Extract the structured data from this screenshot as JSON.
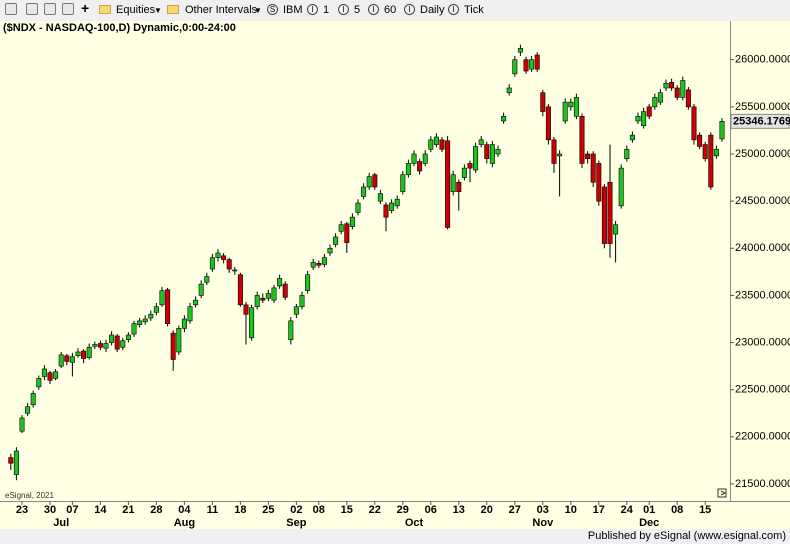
{
  "toolbar": [
    "Equities",
    "Other Intervals",
    "IBM",
    "1",
    "5",
    "60",
    "Daily",
    "Tick"
  ],
  "chart_data": {
    "type": "candlestick",
    "title": "($NDX - NASDAQ-100,D) Dynamic,0:00-24:00",
    "watermark": "eSignal, 2021",
    "footer": "Published by eSignal (www.esignal.com)",
    "up_color": "#1fc31f",
    "down_color": "#c80000",
    "background": "#ffffe3",
    "grid": false,
    "ylim": [
      21330,
      26400
    ],
    "yticks": [
      {
        "value": 21500,
        "label": "21500.0000"
      },
      {
        "value": 22000,
        "label": "22000.0000"
      },
      {
        "value": 22500,
        "label": "22500.0000"
      },
      {
        "value": 23000,
        "label": "23000.0000"
      },
      {
        "value": 23500,
        "label": "23500.0000"
      },
      {
        "value": 24000,
        "label": "24000.0000"
      },
      {
        "value": 24500,
        "label": "24500.0000"
      },
      {
        "value": 25000,
        "label": "25000.0000"
      },
      {
        "value": 25500,
        "label": "25500.0000"
      },
      {
        "value": 26000,
        "label": "26000.0000"
      }
    ],
    "categories": [
      null,
      null,
      "23",
      null,
      null,
      null,
      null,
      "30",
      null,
      null,
      null,
      "07",
      null,
      null,
      null,
      null,
      "14",
      null,
      null,
      null,
      null,
      "21",
      null,
      null,
      null,
      null,
      "28",
      null,
      null,
      null,
      null,
      "04",
      null,
      null,
      null,
      null,
      "11",
      null,
      null,
      null,
      null,
      "18",
      null,
      null,
      null,
      null,
      "25",
      null,
      null,
      null,
      null,
      "02",
      null,
      null,
      null,
      "08",
      null,
      null,
      null,
      null,
      "15",
      null,
      null,
      null,
      null,
      "22",
      null,
      null,
      null,
      null,
      "29",
      null,
      null,
      null,
      null,
      "06",
      null,
      null,
      null,
      null,
      "13",
      null,
      null,
      null,
      null,
      "20",
      null,
      null,
      null,
      null,
      "27",
      null,
      null,
      null,
      null,
      "03",
      null,
      null,
      null,
      null,
      "10",
      null,
      null,
      null,
      null,
      "17",
      null,
      null,
      null,
      null,
      "24",
      null,
      null,
      null,
      "01",
      null,
      null,
      null,
      null,
      "08",
      null,
      null,
      null,
      null,
      "15",
      null,
      null,
      null
    ],
    "months": [
      null,
      null,
      null,
      null,
      null,
      null,
      null,
      null,
      null,
      "Jul",
      null,
      null,
      null,
      null,
      null,
      null,
      null,
      null,
      null,
      null,
      null,
      null,
      null,
      null,
      null,
      null,
      null,
      null,
      null,
      null,
      null,
      "Aug",
      null,
      null,
      null,
      null,
      null,
      null,
      null,
      null,
      null,
      null,
      null,
      null,
      null,
      null,
      null,
      null,
      null,
      null,
      null,
      "Sep",
      null,
      null,
      null,
      null,
      null,
      null,
      null,
      null,
      null,
      null,
      null,
      null,
      null,
      null,
      null,
      null,
      null,
      null,
      null,
      null,
      "Oct",
      null,
      null,
      null,
      null,
      null,
      null,
      null,
      null,
      null,
      null,
      null,
      null,
      null,
      null,
      null,
      null,
      null,
      null,
      null,
      null,
      null,
      null,
      "Nov",
      null,
      null,
      null,
      null,
      null,
      null,
      null,
      null,
      null,
      null,
      null,
      null,
      null,
      null,
      null,
      null,
      null,
      null,
      "Dec",
      null,
      null,
      null,
      null,
      null,
      null,
      null,
      null,
      null,
      null,
      null,
      null,
      null
    ],
    "open": [
      21780,
      21600,
      22060,
      22250,
      22340,
      22530,
      22640,
      22680,
      22620,
      22750,
      22860,
      22790,
      22860,
      22910,
      22840,
      22960,
      22990,
      22940,
      23000,
      23070,
      22950,
      23030,
      23090,
      23190,
      23220,
      23260,
      23320,
      23400,
      23560,
      23100,
      22900,
      23150,
      23230,
      23400,
      23500,
      23640,
      23780,
      23900,
      23920,
      23880,
      23760,
      23720,
      23400,
      23050,
      23380,
      23470,
      23470,
      23450,
      23600,
      23620,
      23030,
      23300,
      23380,
      23550,
      23800,
      23840,
      23830,
      23950,
      24040,
      24180,
      24260,
      24230,
      24380,
      24550,
      24650,
      24780,
      24500,
      24460,
      24400,
      24450,
      24600,
      24780,
      24900,
      24920,
      24900,
      25050,
      25100,
      25150,
      25140,
      24600,
      24700,
      24750,
      24900,
      24830,
      25100,
      25100,
      24900,
      25000,
      25350,
      25650,
      25850,
      26080,
      26000,
      25900,
      26050,
      25650,
      25500,
      25150,
      24980,
      25350,
      25500,
      25400,
      25400,
      25000,
      25000,
      24900,
      24650,
      24700,
      24150,
      24450,
      24950,
      25150,
      25350,
      25300,
      25500,
      25500,
      25550,
      25700,
      25760,
      25700,
      25600,
      25680,
      25500,
      25200,
      25100,
      25200,
      24980,
      25160
    ],
    "high": [
      21820,
      21890,
      22230,
      22360,
      22490,
      22650,
      22760,
      22700,
      22720,
      22900,
      22880,
      22890,
      22940,
      22930,
      22990,
      23010,
      23020,
      23030,
      23120,
      23090,
      23050,
      23110,
      23230,
      23260,
      23290,
      23340,
      23420,
      23590,
      23580,
      23130,
      23180,
      23290,
      23420,
      23490,
      23660,
      23740,
      23940,
      23990,
      23950,
      23900,
      23800,
      23740,
      23430,
      23400,
      23540,
      23520,
      23560,
      23610,
      23720,
      23650,
      23270,
      23410,
      23540,
      23760,
      23890,
      23870,
      23940,
      24040,
      24160,
      24290,
      24280,
      24370,
      24520,
      24690,
      24800,
      24800,
      24620,
      24490,
      24520,
      24560,
      24820,
      24940,
      25040,
      24950,
      25040,
      25190,
      25220,
      25180,
      25190,
      24820,
      24730,
      24890,
      24930,
      25120,
      25190,
      25130,
      25140,
      25090,
      25440,
      25740,
      26040,
      26160,
      26030,
      26040,
      26080,
      25680,
      25530,
      25180,
      25040,
      25590,
      25590,
      25640,
      25430,
      25030,
      25030,
      24930,
      24680,
      25100,
      24290,
      24890,
      25090,
      25240,
      25440,
      25490,
      25530,
      25640,
      25690,
      25790,
      25800,
      25730,
      25820,
      25710,
      25530,
      25230,
      25130,
      25230,
      25090,
      25380
    ],
    "low": [
      21650,
      21540,
      22040,
      22220,
      22310,
      22500,
      22600,
      22560,
      22600,
      22730,
      22760,
      22640,
      22840,
      22780,
      22820,
      22930,
      22920,
      22900,
      22970,
      22900,
      22920,
      23000,
      23060,
      23160,
      23190,
      23230,
      23290,
      23380,
      23170,
      22700,
      22870,
      23110,
      23200,
      23370,
      23470,
      23610,
      23750,
      23860,
      23840,
      23740,
      23720,
      23380,
      22980,
      23020,
      23350,
      23420,
      23440,
      23420,
      23570,
      23450,
      22980,
      23260,
      23350,
      23520,
      23770,
      23790,
      23800,
      23920,
      24010,
      24150,
      23950,
      24200,
      24350,
      24520,
      24620,
      24620,
      24470,
      24180,
      24370,
      24420,
      24570,
      24750,
      24870,
      24780,
      24870,
      25020,
      25070,
      25020,
      24200,
      24560,
      24400,
      24720,
      24700,
      24800,
      25070,
      24900,
      24860,
      24970,
      25320,
      25620,
      25820,
      26040,
      25850,
      25870,
      25870,
      25400,
      25100,
      24800,
      24550,
      25320,
      25460,
      25370,
      24850,
      24900,
      24650,
      24450,
      24000,
      23900,
      23850,
      24420,
      24920,
      25120,
      25320,
      25270,
      25370,
      25470,
      25520,
      25670,
      25670,
      25570,
      25570,
      25470,
      25100,
      25050,
      24920,
      24620,
      24950,
      25130
    ],
    "close": [
      21720,
      21850,
      22200,
      22320,
      22460,
      22620,
      22720,
      22600,
      22690,
      22870,
      22800,
      22850,
      22900,
      22830,
      22950,
      22980,
      22950,
      22990,
      23080,
      22930,
      23020,
      23080,
      23200,
      23230,
      23250,
      23300,
      23380,
      23550,
      23200,
      22820,
      23150,
      23250,
      23380,
      23450,
      23620,
      23700,
      23900,
      23950,
      23880,
      23780,
      23770,
      23400,
      23300,
      23370,
      23500,
      23450,
      23520,
      23580,
      23680,
      23480,
      23230,
      23380,
      23500,
      23720,
      23850,
      23820,
      23900,
      24000,
      24120,
      24250,
      24060,
      24330,
      24480,
      24650,
      24760,
      24650,
      24580,
      24330,
      24480,
      24520,
      24780,
      24900,
      25000,
      24820,
      25000,
      25150,
      25180,
      25050,
      24220,
      24780,
      24600,
      24850,
      24850,
      25080,
      25150,
      24950,
      25100,
      25050,
      25400,
      25700,
      26000,
      26120,
      25880,
      26000,
      25900,
      25450,
      25150,
      24900,
      25000,
      25550,
      25550,
      25600,
      24900,
      24950,
      24700,
      24500,
      24050,
      24050,
      24250,
      24850,
      25050,
      25200,
      25400,
      25450,
      25400,
      25600,
      25650,
      25750,
      25700,
      25600,
      25780,
      25500,
      25150,
      25080,
      24950,
      24650,
      25050,
      25346.1769
    ]
  }
}
